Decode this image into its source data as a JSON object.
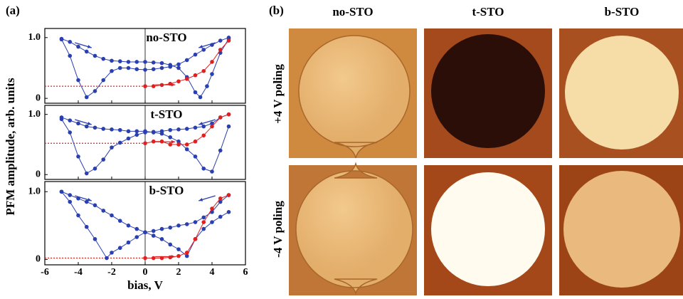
{
  "chart_data": [
    {
      "type": "line",
      "panel_label": "(a)",
      "title": "no-STO",
      "xlim": [
        -6,
        6
      ],
      "xticks": [
        -6,
        -4,
        -2,
        0,
        2,
        4,
        6
      ],
      "ylim": [
        -0.08,
        1.15
      ],
      "yticks": [
        0,
        {
          "value": 1,
          "label": "1.0"
        }
      ],
      "hline": {
        "value": 0.2,
        "x": [
          -6,
          0
        ],
        "color": "#e02020"
      },
      "series": [
        {
          "color": "#2a3fb0",
          "x": [
            5,
            4.5,
            4,
            3.5,
            3,
            2.5,
            2,
            1.5,
            1,
            0.5,
            0,
            -0.5,
            -1,
            -1.5,
            -2,
            -2.5,
            -3,
            -3.5,
            -4,
            -4.5,
            -5
          ],
          "values": [
            1.0,
            0.95,
            0.88,
            0.8,
            0.72,
            0.63,
            0.56,
            0.52,
            0.5,
            0.48,
            0.47,
            0.48,
            0.5,
            0.5,
            0.45,
            0.3,
            0.12,
            0.02,
            0.3,
            0.7,
            0.97
          ]
        },
        {
          "color": "#2a3fb0",
          "x": [
            -5,
            -4.5,
            -4,
            -3.5,
            -3,
            -2.5,
            -2,
            -1.5,
            -1,
            -0.5,
            0,
            0.5,
            1,
            1.5,
            2,
            2.5,
            3,
            3.3,
            3.7,
            4,
            4.5,
            5
          ],
          "values": [
            0.98,
            0.93,
            0.85,
            0.77,
            0.7,
            0.65,
            0.62,
            0.61,
            0.6,
            0.6,
            0.6,
            0.59,
            0.58,
            0.55,
            0.5,
            0.35,
            0.1,
            0.02,
            0.2,
            0.4,
            0.75,
            0.98
          ]
        },
        {
          "color": "#e02020",
          "x": [
            0,
            0.5,
            1,
            1.5,
            2,
            2.5,
            3,
            3.5,
            4,
            4.5,
            5
          ],
          "values": [
            0.2,
            0.2,
            0.22,
            0.24,
            0.28,
            0.32,
            0.38,
            0.45,
            0.6,
            0.8,
            0.95
          ]
        }
      ]
    },
    {
      "type": "line",
      "title": "t-STO",
      "ylabel": "PFM amplitude, arb. units",
      "xlim": [
        -6,
        6
      ],
      "xticks": [
        -6,
        -4,
        -2,
        0,
        2,
        4,
        6
      ],
      "ylim": [
        -0.08,
        1.15
      ],
      "yticks": [
        0,
        {
          "value": 1,
          "label": "1.0"
        }
      ],
      "hline": {
        "value": 0.52,
        "x": [
          -6,
          0
        ],
        "color": "#e02020"
      },
      "series": [
        {
          "color": "#2a3fb0",
          "x": [
            5,
            4.5,
            4,
            3.5,
            3,
            2.5,
            2,
            1.5,
            1,
            0.5,
            0,
            -0.5,
            -1,
            -1.5,
            -2,
            -2.5,
            -3,
            -3.5,
            -4,
            -4.5,
            -5
          ],
          "values": [
            1.0,
            0.95,
            0.85,
            0.8,
            0.78,
            0.76,
            0.75,
            0.74,
            0.72,
            0.71,
            0.7,
            0.66,
            0.6,
            0.53,
            0.45,
            0.25,
            0.1,
            0.02,
            0.3,
            0.7,
            0.92
          ]
        },
        {
          "color": "#2a3fb0",
          "x": [
            -5,
            -4.5,
            -4,
            -3.5,
            -3,
            -2.5,
            -2,
            -1.5,
            -1,
            -0.5,
            0,
            0.5,
            1,
            1.5,
            2,
            2.5,
            3,
            3.5,
            4,
            4.5,
            5
          ],
          "values": [
            0.95,
            0.9,
            0.85,
            0.8,
            0.78,
            0.76,
            0.75,
            0.74,
            0.72,
            0.72,
            0.72,
            0.7,
            0.68,
            0.62,
            0.55,
            0.42,
            0.3,
            0.1,
            0.05,
            0.4,
            0.8
          ]
        },
        {
          "color": "#e02020",
          "x": [
            0,
            0.5,
            1,
            1.5,
            2,
            2.5,
            3,
            3.5,
            4,
            4.5,
            5
          ],
          "values": [
            0.52,
            0.55,
            0.55,
            0.5,
            0.5,
            0.5,
            0.55,
            0.65,
            0.8,
            0.95,
            1.0
          ]
        }
      ]
    },
    {
      "type": "line",
      "title": "b-STO",
      "xlabel": "bias, V",
      "xlim": [
        -6,
        6
      ],
      "xticks": [
        -6,
        -4,
        -2,
        0,
        2,
        4,
        6
      ],
      "ylim": [
        -0.08,
        1.15
      ],
      "yticks": [
        0,
        {
          "value": 1,
          "label": "1.0"
        }
      ],
      "hline": {
        "value": 0.02,
        "x": [
          -6,
          0
        ],
        "color": "#e02020"
      },
      "series": [
        {
          "color": "#2a3fb0",
          "x": [
            5,
            4.5,
            4,
            3.5,
            3,
            2.5,
            2,
            1.5,
            1,
            0.5,
            0,
            -0.5,
            -1,
            -1.5,
            -2,
            -2.3,
            -3,
            -3.5,
            -4,
            -4.5,
            -5
          ],
          "values": [
            0.95,
            0.85,
            0.7,
            0.62,
            0.55,
            0.52,
            0.5,
            0.47,
            0.45,
            0.42,
            0.4,
            0.33,
            0.25,
            0.17,
            0.1,
            0.02,
            0.3,
            0.48,
            0.65,
            0.85,
            1.0
          ]
        },
        {
          "color": "#2a3fb0",
          "x": [
            -5,
            -4.5,
            -4,
            -3.5,
            -3,
            -2.5,
            -2,
            -1.5,
            -1,
            -0.5,
            0,
            0.5,
            1,
            1.5,
            2,
            2.5,
            3,
            3.5,
            4,
            4.5,
            5
          ],
          "values": [
            1.0,
            0.95,
            0.9,
            0.85,
            0.8,
            0.72,
            0.65,
            0.57,
            0.5,
            0.45,
            0.4,
            0.35,
            0.3,
            0.22,
            0.15,
            0.05,
            0.3,
            0.45,
            0.55,
            0.63,
            0.7
          ]
        },
        {
          "color": "#e02020",
          "x": [
            0,
            0.5,
            1,
            1.5,
            2,
            2.5,
            3,
            3.5,
            4,
            4.5,
            5
          ],
          "values": [
            0.02,
            0.02,
            0.02,
            0.03,
            0.05,
            0.1,
            0.3,
            0.55,
            0.75,
            0.9,
            0.95
          ]
        }
      ]
    }
  ],
  "panel_b": {
    "label": "(b)",
    "columns": [
      "no-STO",
      "t-STO",
      "b-STO"
    ],
    "rows": [
      "+4 V poling",
      "-4 V poling"
    ]
  }
}
